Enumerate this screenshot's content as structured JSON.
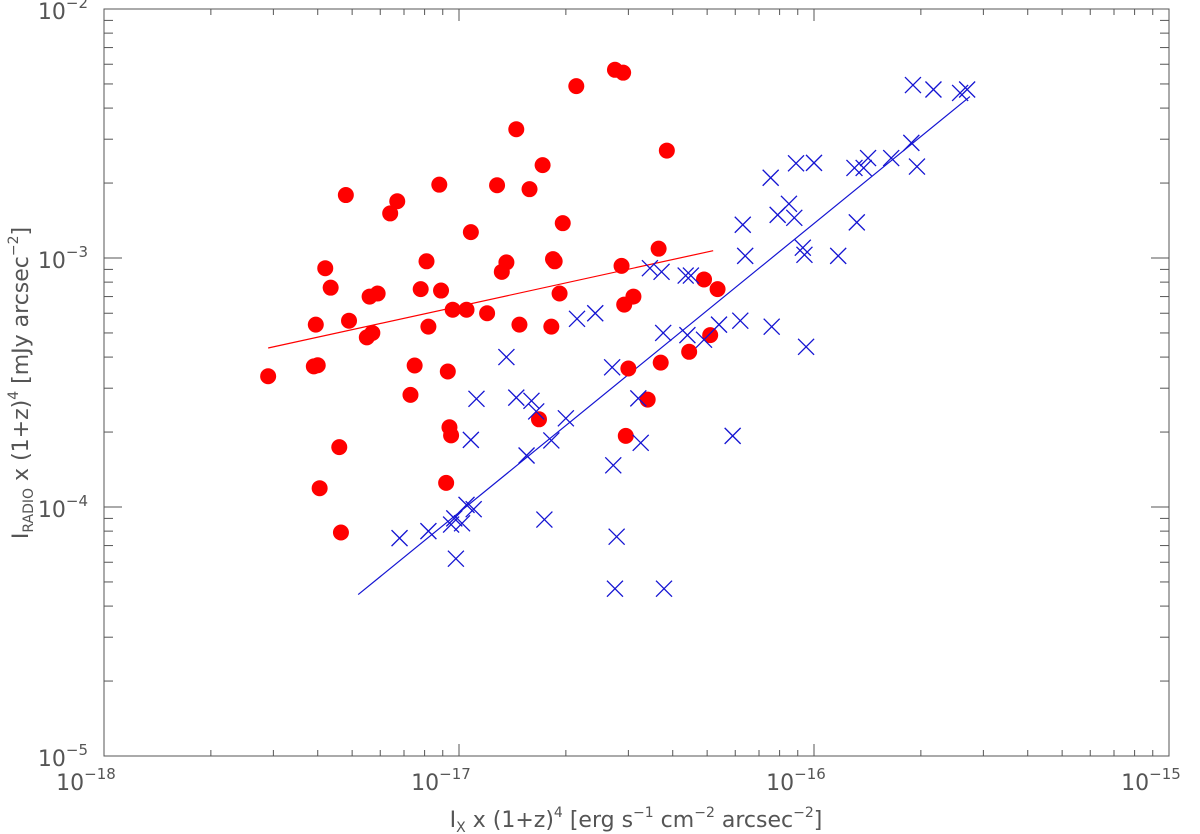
{
  "chart_data": {
    "type": "scatter",
    "title": "",
    "xlabel": {
      "main": "I",
      "sub": "X",
      "rest1": " x (1+z)",
      "sup": "4",
      "rest2": " [erg s",
      "sup2": "−1",
      "rest3": " cm",
      "sup3": "−2",
      "rest4": " arcsec",
      "sup4": "−2",
      "rest5": "]"
    },
    "ylabel": {
      "main": "I",
      "sub": "RADIO",
      "rest1": " x (1+z)",
      "sup": "4",
      "rest2": " [mJy arcsec",
      "sup2": "−2",
      "rest3": "]"
    },
    "xscale": "log",
    "yscale": "log",
    "xlim": [
      1e-18,
      1e-15
    ],
    "ylim": [
      1e-05,
      0.01
    ],
    "x_ticks": [
      {
        "value": 1e-18,
        "base": "10",
        "exp": "−18"
      },
      {
        "value": 1e-17,
        "base": "10",
        "exp": "−17"
      },
      {
        "value": 1e-16,
        "base": "10",
        "exp": "−16"
      },
      {
        "value": 1e-15,
        "base": "10",
        "exp": "−15"
      }
    ],
    "y_ticks": [
      {
        "value": 1e-05,
        "base": "10",
        "exp": "−5"
      },
      {
        "value": 0.0001,
        "base": "10",
        "exp": "−4"
      },
      {
        "value": 0.001,
        "base": "10",
        "exp": "−3"
      },
      {
        "value": 0.01,
        "base": "10",
        "exp": "−2"
      }
    ],
    "grid": false,
    "series": [
      {
        "marker": "filled-circle",
        "color": "#ff0000",
        "points": [
          [
            2.9e-18,
            0.000335
          ],
          [
            3.9e-18,
            0.000367
          ],
          [
            4e-18,
            0.000371
          ],
          [
            3.95e-18,
            0.00054
          ],
          [
            4.05e-18,
            0.000119
          ],
          [
            4.2e-18,
            0.00091
          ],
          [
            4.35e-18,
            0.00076
          ],
          [
            4.6e-18,
            0.000174
          ],
          [
            4.65e-18,
            7.9e-05
          ],
          [
            4.8e-18,
            0.00179
          ],
          [
            4.9e-18,
            0.00056
          ],
          [
            5.5e-18,
            0.00048
          ],
          [
            5.6e-18,
            0.0007
          ],
          [
            5.7e-18,
            0.0005
          ],
          [
            5.9e-18,
            0.00072
          ],
          [
            6.4e-18,
            0.00151
          ],
          [
            6.7e-18,
            0.00169
          ],
          [
            7.3e-18,
            0.000282
          ],
          [
            7.5e-18,
            0.00037
          ],
          [
            7.8e-18,
            0.00075
          ],
          [
            8.1e-18,
            0.00097
          ],
          [
            8.2e-18,
            0.00053
          ],
          [
            8.8e-18,
            0.00197
          ],
          [
            8.9e-18,
            0.00074
          ],
          [
            9.2e-18,
            0.000125
          ],
          [
            9.3e-18,
            0.00035
          ],
          [
            9.4e-18,
            0.000209
          ],
          [
            9.5e-18,
            0.000194
          ],
          [
            9.6e-18,
            0.00062
          ],
          [
            1.05e-17,
            0.00062
          ],
          [
            1.08e-17,
            0.00127
          ],
          [
            1.2e-17,
            0.0006
          ],
          [
            1.28e-17,
            0.00196
          ],
          [
            1.32e-17,
            0.00088
          ],
          [
            1.36e-17,
            0.00096
          ],
          [
            1.45e-17,
            0.00329
          ],
          [
            1.48e-17,
            0.00054
          ],
          [
            1.58e-17,
            0.00189
          ],
          [
            1.68e-17,
            0.000225
          ],
          [
            1.72e-17,
            0.00236
          ],
          [
            1.82e-17,
            0.00053
          ],
          [
            1.84e-17,
            0.00099
          ],
          [
            1.86e-17,
            0.00097
          ],
          [
            1.92e-17,
            0.00072
          ],
          [
            1.96e-17,
            0.00138
          ],
          [
            2.14e-17,
            0.0049
          ],
          [
            2.75e-17,
            0.0057
          ],
          [
            2.9e-17,
            0.00555
          ],
          [
            2.87e-17,
            0.00093
          ],
          [
            2.92e-17,
            0.00065
          ],
          [
            2.95e-17,
            0.000193
          ],
          [
            3e-17,
            0.00036
          ],
          [
            3.1e-17,
            0.0007
          ],
          [
            3.4e-17,
            0.00027
          ],
          [
            3.65e-17,
            0.00109
          ],
          [
            3.7e-17,
            0.00038
          ],
          [
            3.85e-17,
            0.0027
          ],
          [
            4.45e-17,
            0.00042
          ],
          [
            4.9e-17,
            0.00082
          ],
          [
            5.1e-17,
            0.00049
          ],
          [
            5.35e-17,
            0.00075
          ]
        ]
      },
      {
        "marker": "cross",
        "color": "#1414d2",
        "points": [
          [
            6.8e-18,
            7.5e-05
          ],
          [
            8.2e-18,
            8e-05
          ],
          [
            9.5e-18,
            8.5e-05
          ],
          [
            9.7e-18,
            9e-05
          ],
          [
            9.8e-18,
            6.2e-05
          ],
          [
            1.02e-17,
            8.6e-05
          ],
          [
            1.05e-17,
            0.000102
          ],
          [
            1.08e-17,
            0.000186
          ],
          [
            1.1e-17,
            9.8e-05
          ],
          [
            1.12e-17,
            0.000272
          ],
          [
            1.36e-17,
            0.0004
          ],
          [
            1.45e-17,
            0.000275
          ],
          [
            1.55e-17,
            0.000161
          ],
          [
            1.6e-17,
            0.000267
          ],
          [
            1.65e-17,
            0.000242
          ],
          [
            1.74e-17,
            8.9e-05
          ],
          [
            1.82e-17,
            0.000185
          ],
          [
            2e-17,
            0.000227
          ],
          [
            2.15e-17,
            0.00057
          ],
          [
            2.42e-17,
            0.0006
          ],
          [
            2.7e-17,
            0.000364
          ],
          [
            2.72e-17,
            0.000147
          ],
          [
            2.78e-17,
            7.6e-05
          ],
          [
            2.75e-17,
            4.7e-05
          ],
          [
            3.2e-17,
            0.000273
          ],
          [
            3.25e-17,
            0.000181
          ],
          [
            3.45e-17,
            0.00091
          ],
          [
            3.72e-17,
            0.00088
          ],
          [
            3.76e-17,
            0.0005
          ],
          [
            3.78e-17,
            4.7e-05
          ],
          [
            4.35e-17,
            0.00085
          ],
          [
            4.5e-17,
            0.00085
          ],
          [
            4.4e-17,
            0.00049
          ],
          [
            4.9e-17,
            0.00047
          ],
          [
            5.4e-17,
            0.00054
          ],
          [
            5.9e-17,
            0.000193
          ],
          [
            6.2e-17,
            0.00056
          ],
          [
            6.3e-17,
            0.00136
          ],
          [
            6.4e-17,
            0.00102
          ],
          [
            7.55e-17,
            0.0021
          ],
          [
            7.6e-17,
            0.00053
          ],
          [
            7.9e-17,
            0.00149
          ],
          [
            8.5e-17,
            0.00165
          ],
          [
            8.8e-17,
            0.00145
          ],
          [
            8.9e-17,
            0.0024
          ],
          [
            9.3e-17,
            0.0011
          ],
          [
            9.4e-17,
            0.00103
          ],
          [
            9.5e-17,
            0.00044
          ],
          [
            1e-16,
            0.00241
          ],
          [
            1.17e-16,
            0.00102
          ],
          [
            1.3e-16,
            0.0023
          ],
          [
            1.32e-16,
            0.00139
          ],
          [
            1.38e-16,
            0.0023
          ],
          [
            1.42e-16,
            0.00252
          ],
          [
            1.65e-16,
            0.00252
          ],
          [
            1.88e-16,
            0.0029
          ],
          [
            1.9e-16,
            0.00495
          ],
          [
            1.95e-16,
            0.00233
          ],
          [
            2.17e-16,
            0.00475
          ],
          [
            2.58e-16,
            0.0046
          ],
          [
            2.7e-16,
            0.00475
          ]
        ]
      }
    ],
    "fit_lines": [
      {
        "color": "#ff0000",
        "from": [
          2.9e-18,
          0.000435
        ],
        "to": [
          5.2e-17,
          0.00107
        ]
      },
      {
        "color": "#1414d2",
        "from": [
          5.2e-18,
          4.45e-05
        ],
        "to": [
          2.75e-16,
          0.00445
        ]
      }
    ]
  }
}
